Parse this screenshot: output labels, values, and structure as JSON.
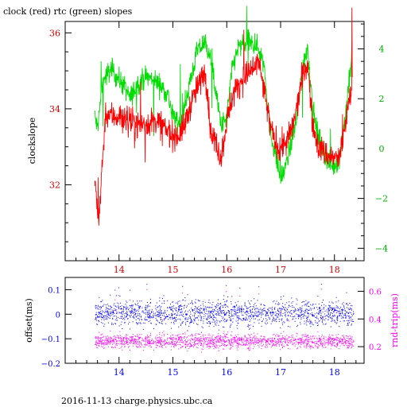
{
  "title": "clock (red) rtc (green) slopes",
  "footer": "2016-11-13 charge.physics.ubc.ca",
  "chart_data": [
    {
      "type": "line",
      "title": "clock (red) rtc (green) slopes",
      "xlabel": "",
      "ylabel": "clockslope",
      "xlim": [
        13.0,
        18.55
      ],
      "x_ticks": [
        14,
        15,
        16,
        17,
        18
      ],
      "ylim_left": [
        30.0,
        36.3
      ],
      "ylim_right": [
        -4.5,
        5.1
      ],
      "left_ticks": [
        32,
        34,
        36
      ],
      "right_ticks": [
        -4,
        -2,
        0,
        2,
        4
      ],
      "colors": {
        "left_axis": "#d40000",
        "right_axis": "#00b000",
        "x_ticks": "#d40000"
      },
      "series": [
        {
          "name": "clock",
          "color": "#ff0000",
          "axis": "left",
          "x": [
            13.55,
            13.62,
            13.75,
            13.9,
            14.1,
            14.3,
            14.5,
            14.7,
            14.9,
            15.0,
            15.1,
            15.2,
            15.35,
            15.5,
            15.6,
            15.65,
            15.7,
            15.8,
            15.9,
            16.0,
            16.1,
            16.2,
            16.3,
            16.45,
            16.6,
            16.7,
            16.8,
            16.9,
            17.0,
            17.1,
            17.2,
            17.3,
            17.4,
            17.5,
            17.6,
            17.7,
            17.85,
            18.0,
            18.1,
            18.2,
            18.3,
            18.33
          ],
          "y": [
            32.2,
            31.0,
            33.9,
            33.8,
            33.8,
            33.6,
            33.6,
            33.7,
            33.4,
            33.3,
            33.3,
            33.5,
            34.2,
            34.7,
            35.0,
            34.3,
            33.4,
            33.1,
            32.7,
            33.7,
            34.3,
            34.6,
            34.8,
            35.0,
            35.2,
            34.4,
            33.6,
            33.1,
            33.0,
            33.1,
            33.4,
            34.0,
            34.8,
            35.2,
            33.5,
            33.0,
            32.8,
            32.7,
            32.7,
            33.6,
            34.4,
            34.8
          ]
        },
        {
          "name": "rtc",
          "color": "#00dd00",
          "axis": "right",
          "x": [
            13.55,
            13.6,
            13.7,
            13.85,
            13.95,
            14.1,
            14.2,
            14.35,
            14.5,
            14.7,
            14.9,
            15.0,
            15.15,
            15.3,
            15.45,
            15.6,
            15.7,
            15.8,
            15.9,
            16.0,
            16.1,
            16.2,
            16.4,
            16.6,
            16.7,
            16.8,
            16.9,
            17.0,
            17.1,
            17.2,
            17.3,
            17.4,
            17.5,
            17.6,
            17.7,
            17.8,
            17.9,
            18.0,
            18.1,
            18.2,
            18.3,
            18.33
          ],
          "y": [
            1.3,
            0.8,
            2.7,
            3.2,
            2.9,
            2.5,
            2.0,
            2.6,
            2.9,
            2.7,
            2.2,
            1.3,
            1.0,
            2.5,
            3.9,
            4.3,
            3.6,
            2.2,
            0.9,
            1.2,
            3.2,
            4.0,
            4.3,
            4.0,
            3.3,
            0.8,
            -0.2,
            -1.2,
            -0.7,
            0.3,
            1.2,
            3.2,
            4.1,
            1.6,
            0.4,
            -0.1,
            -0.6,
            -0.7,
            -0.3,
            1.3,
            3.2,
            4.0
          ]
        }
      ]
    },
    {
      "type": "scatter",
      "xlabel": "",
      "ylabel": "offset(ms)",
      "ylabel_right": "rnd-trip(ms)",
      "xlim": [
        13.0,
        18.55
      ],
      "x_ticks": [
        14,
        15,
        16,
        17,
        18
      ],
      "ylim_left": [
        -0.2,
        0.15
      ],
      "ylim_right": [
        0.08,
        0.7
      ],
      "left_ticks": [
        -0.2,
        -0.1,
        0,
        0.1
      ],
      "right_ticks": [
        0.2,
        0.4,
        0.6
      ],
      "colors": {
        "left_axis": "#0000ff",
        "right_axis": "#ff00ff",
        "x_ticks": "#0000ff"
      },
      "series": [
        {
          "name": "offset",
          "color": "#0000ff",
          "axis": "left",
          "x_range": [
            13.55,
            18.35
          ],
          "center": 0.005,
          "spread": 0.025,
          "outliers_up_to": 0.13
        },
        {
          "name": "rnd-trip",
          "color": "#ff00ff",
          "axis": "right",
          "x_range": [
            13.55,
            18.35
          ],
          "center": 0.24,
          "spread": 0.025,
          "outliers_up_to": 0.64
        }
      ]
    }
  ]
}
